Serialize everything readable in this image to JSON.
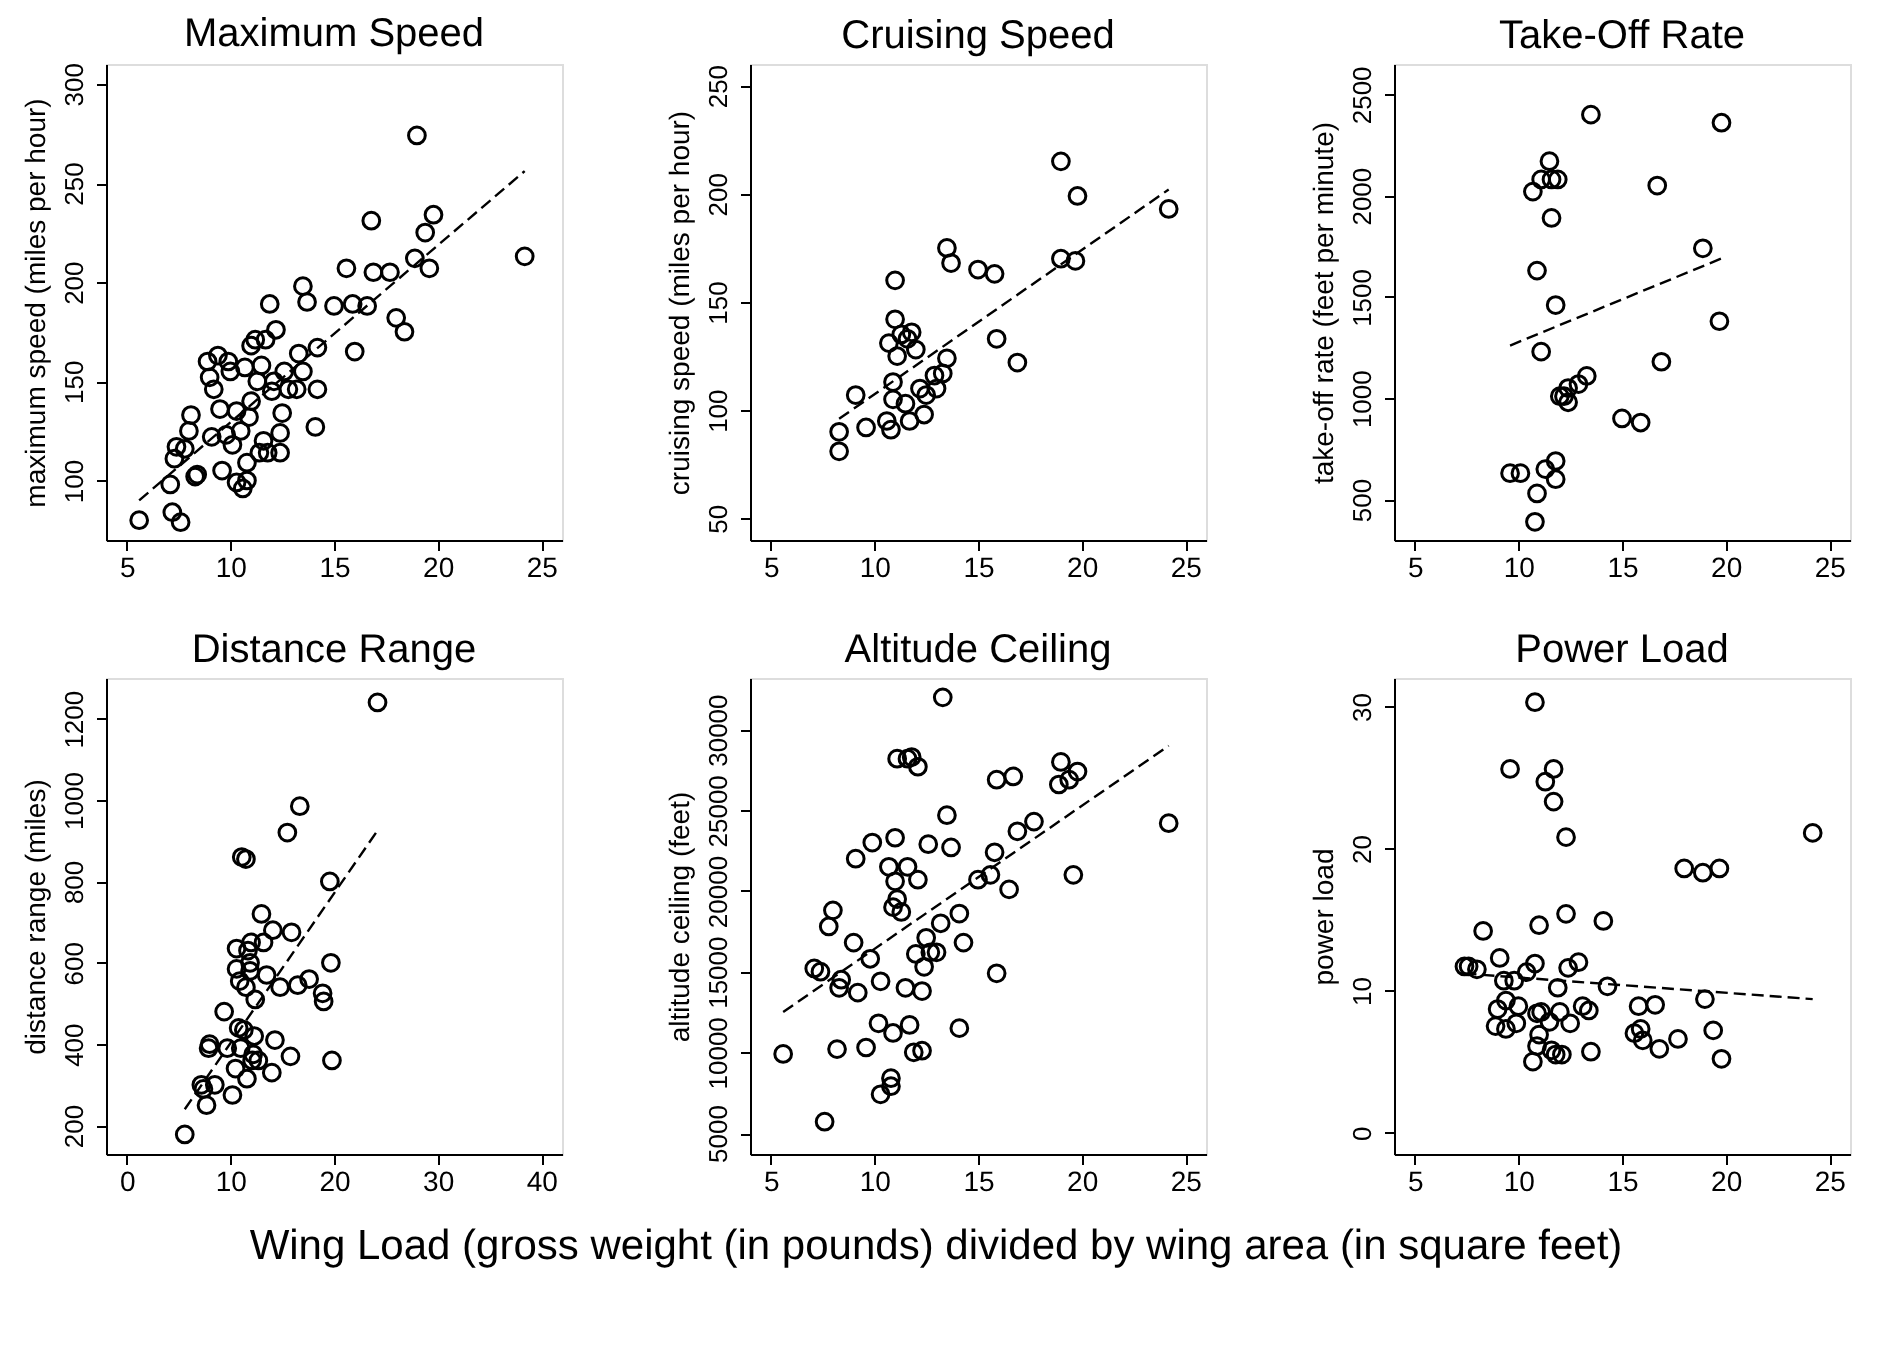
{
  "chart_data": [
    {
      "type": "scatter",
      "title": "Maximum Speed",
      "ylabel": "maximum speed (miles per hour)",
      "xlim": [
        4,
        26
      ],
      "xticks": [
        5,
        10,
        15,
        20,
        25
      ],
      "ylim": [
        70,
        310
      ],
      "yticks": [
        100,
        150,
        200,
        250,
        300
      ],
      "grid": false,
      "series": [
        {
          "marker": "circle",
          "color": "#000000",
          "x": [
            5.6,
            7.1,
            7.2,
            7.4,
            7.3,
            7.6,
            7.8,
            8.0,
            8.1,
            8.3,
            8.4,
            8.9,
            9.0,
            9.1,
            9.2,
            9.4,
            9.5,
            9.6,
            9.8,
            10.0,
            9.9,
            10.1,
            10.3,
            10.3,
            10.5,
            10.6,
            10.7,
            10.8,
            10.8,
            10.9,
            11.0,
            11.0,
            11.2,
            11.3,
            11.4,
            11.5,
            11.6,
            11.7,
            11.8,
            11.9,
            12.0,
            12.1,
            12.2,
            12.4,
            12.4,
            12.5,
            12.6,
            12.8,
            13.2,
            13.3,
            13.5,
            13.5,
            13.7,
            14.1,
            14.2,
            14.2,
            15.0,
            15.6,
            15.9,
            16.0,
            16.6,
            16.8,
            16.9,
            17.7,
            18.0,
            18.4,
            18.9,
            19.0,
            19.4,
            19.6,
            19.8,
            24.2
          ],
          "values": [
            80,
            98,
            84,
            117,
            111,
            79,
            116,
            125,
            133,
            102,
            103,
            160,
            152,
            122,
            146,
            163,
            136,
            105,
            123,
            155,
            160,
            118,
            99,
            135,
            125,
            96,
            157,
            109,
            100,
            132,
            140,
            168,
            171,
            150,
            114,
            158,
            120,
            171,
            114,
            189,
            145,
            150,
            176,
            114,
            124,
            134,
            155,
            146,
            146,
            164,
            198,
            155,
            190,
            127,
            146,
            167,
            188,
            207,
            189,
            165,
            188,
            231,
            205,
            205,
            182,
            175,
            212,
            274,
            225,
            207,
            234,
            213
          ]
        },
        {
          "type": "line",
          "color": "#000000",
          "line_style": "dashed",
          "x": [
            5.6,
            24.2
          ],
          "values": [
            90,
            256
          ]
        }
      ]
    },
    {
      "type": "scatter",
      "title": "Cruising Speed",
      "ylabel": "cruising speed (miles per hour)",
      "xlim": [
        4,
        26
      ],
      "xticks": [
        5,
        10,
        15,
        20,
        25
      ],
      "ylim": [
        40,
        260
      ],
      "yticks": [
        50,
        100,
        150,
        200,
        250
      ],
      "grid": false,
      "series": [
        {
          "marker": "circle",
          "color": "#000000",
          "x": [
            8.3,
            8.3,
            9.1,
            9.6,
            10.6,
            10.7,
            10.8,
            10.9,
            10.9,
            11.0,
            11.0,
            11.1,
            11.3,
            11.5,
            11.6,
            11.7,
            11.8,
            12.0,
            12.2,
            12.4,
            12.5,
            12.9,
            13.0,
            13.3,
            13.5,
            13.5,
            13.7,
            15.0,
            15.8,
            15.9,
            16.9,
            19.0,
            19.0,
            19.7,
            19.8,
            24.2
          ],
          "values": [
            90,
            81,
            107,
            92,
            95,
            131,
            91,
            113,
            105,
            142,
            160,
            125,
            135,
            103,
            133,
            95,
            136,
            128,
            110,
            98,
            107,
            116,
            110,
            117,
            124,
            175,
            168,
            165,
            163,
            133,
            122,
            170,
            215,
            169,
            199,
            193
          ]
        },
        {
          "type": "line",
          "color": "#000000",
          "line_style": "dashed",
          "x": [
            8.3,
            24.2
          ],
          "values": [
            96,
            202
          ]
        }
      ]
    },
    {
      "type": "scatter",
      "title": "Take-Off Rate",
      "ylabel": "take-off rate (feet per minute)",
      "xlim": [
        4,
        26
      ],
      "xticks": [
        5,
        10,
        15,
        20,
        25
      ],
      "ylim": [
        300,
        2650
      ],
      "yticks": [
        500,
        1000,
        1500,
        2000,
        2500
      ],
      "grid": false,
      "series": [
        {
          "marker": "circle",
          "color": "#000000",
          "x": [
            9.6,
            10.1,
            10.7,
            10.8,
            10.9,
            10.9,
            11.1,
            11.1,
            11.3,
            11.5,
            11.6,
            11.6,
            11.8,
            11.8,
            11.8,
            11.9,
            12.0,
            12.2,
            12.4,
            12.4,
            12.9,
            13.3,
            13.5,
            15.0,
            15.9,
            16.7,
            16.9,
            18.9,
            19.7,
            19.8
          ],
          "values": [
            630,
            630,
            2020,
            390,
            530,
            1630,
            1230,
            2080,
            650,
            2170,
            1890,
            2080,
            690,
            600,
            1460,
            2080,
            1010,
            1010,
            980,
            1050,
            1070,
            1110,
            2400,
            900,
            880,
            2050,
            1180,
            1740,
            1380,
            2360
          ]
        },
        {
          "type": "line",
          "color": "#000000",
          "line_style": "dashed",
          "x": [
            9.6,
            19.8
          ],
          "values": [
            1260,
            1690
          ]
        }
      ]
    },
    {
      "type": "scatter",
      "title": "Distance Range",
      "ylabel": "distance range (miles)",
      "xlim": [
        -2,
        42
      ],
      "xticks": [
        0,
        10,
        20,
        30,
        40
      ],
      "ylim": [
        130,
        1300
      ],
      "yticks": [
        200,
        400,
        600,
        800,
        1000,
        1200
      ],
      "grid": false,
      "series": [
        {
          "marker": "circle",
          "color": "#000000",
          "x": [
            5.6,
            7.2,
            7.4,
            7.7,
            7.9,
            8.0,
            8.5,
            9.4,
            9.7,
            10.2,
            10.5,
            10.6,
            10.6,
            10.8,
            10.9,
            11.0,
            11.1,
            11.3,
            11.5,
            11.5,
            11.6,
            11.7,
            11.9,
            11.9,
            12.0,
            12.1,
            12.2,
            12.3,
            12.4,
            12.7,
            13.0,
            13.2,
            13.5,
            14.0,
            14.1,
            14.3,
            14.8,
            15.5,
            15.8,
            15.9,
            16.5,
            16.7,
            17.6,
            18.9,
            19.0,
            19.6,
            19.7,
            19.8,
            24.2
          ],
          "values": [
            178,
            300,
            290,
            250,
            390,
            400,
            300,
            480,
            390,
            275,
            340,
            585,
            635,
            440,
            555,
            390,
            860,
            435,
            855,
            540,
            315,
            630,
            600,
            580,
            650,
            360,
            375,
            420,
            510,
            360,
            720,
            650,
            570,
            330,
            680,
            410,
            540,
            920,
            370,
            675,
            545,
            985,
            560,
            525,
            505,
            800,
            600,
            360,
            1240
          ]
        },
        {
          "type": "line",
          "color": "#000000",
          "line_style": "dashed",
          "x": [
            5.6,
            24.2
          ],
          "values": [
            240,
            925
          ]
        }
      ]
    },
    {
      "type": "scatter",
      "title": "Altitude Ceiling",
      "ylabel": "altitude ceiling (feet)",
      "xlim": [
        4,
        26
      ],
      "xticks": [
        5,
        10,
        15,
        20,
        25
      ],
      "ylim": [
        3700,
        33200
      ],
      "yticks": [
        5000,
        10000,
        15000,
        20000,
        25000,
        30000
      ],
      "grid": false,
      "annotations": [
        "Wing Load (gross weight (in pounds) divided by wing area (in square feet)"
      ],
      "series": [
        {
          "marker": "circle",
          "color": "#000000",
          "x": [
            5.6,
            7.1,
            7.4,
            7.6,
            7.8,
            8.0,
            8.2,
            8.4,
            8.3,
            9.0,
            9.1,
            9.2,
            9.6,
            9.8,
            9.9,
            10.2,
            10.3,
            10.3,
            10.7,
            10.8,
            10.8,
            10.9,
            10.9,
            11.0,
            11.0,
            11.1,
            11.1,
            11.3,
            11.5,
            11.6,
            11.6,
            11.7,
            11.8,
            11.9,
            12.0,
            12.1,
            12.1,
            12.3,
            12.3,
            12.4,
            12.5,
            12.6,
            12.7,
            13.0,
            13.2,
            13.3,
            13.5,
            13.7,
            14.1,
            14.1,
            14.3,
            15.0,
            15.6,
            15.8,
            15.9,
            15.9,
            16.5,
            16.7,
            16.9,
            17.7,
            18.9,
            19.0,
            19.4,
            19.6,
            19.8,
            24.2
          ],
          "values": [
            9900,
            15200,
            15000,
            5700,
            17800,
            18800,
            10200,
            14500,
            14000,
            16800,
            22000,
            13700,
            10300,
            15800,
            23000,
            11800,
            14400,
            7400,
            21500,
            8400,
            7900,
            11200,
            19000,
            20600,
            23300,
            28200,
            19500,
            18700,
            14000,
            28200,
            21500,
            11700,
            28300,
            10000,
            16100,
            20700,
            27700,
            13800,
            10100,
            15300,
            17100,
            22900,
            16200,
            16200,
            18000,
            32000,
            24700,
            22700,
            18600,
            11500,
            16800,
            20700,
            21000,
            22400,
            26900,
            14900,
            20100,
            27100,
            23700,
            24300,
            26600,
            28000,
            26900,
            21000,
            27400,
            24200
          ]
        },
        {
          "type": "line",
          "color": "#000000",
          "line_style": "dashed",
          "x": [
            5.6,
            24.2
          ],
          "values": [
            12500,
            29000
          ]
        }
      ]
    },
    {
      "type": "scatter",
      "title": "Power Load",
      "ylabel": "power load",
      "xlim": [
        4,
        26
      ],
      "xticks": [
        5,
        10,
        15,
        20,
        25
      ],
      "ylim": [
        -1.5,
        32
      ],
      "yticks": [
        0,
        10,
        20,
        30
      ],
      "grid": false,
      "series": [
        {
          "marker": "circle",
          "color": "#000000",
          "x": [
            7.4,
            7.6,
            8.0,
            8.3,
            8.9,
            9.0,
            9.1,
            9.3,
            9.4,
            9.4,
            9.6,
            9.8,
            9.9,
            10.0,
            10.4,
            10.7,
            10.8,
            10.8,
            10.9,
            10.9,
            11.0,
            11.0,
            11.1,
            11.3,
            11.5,
            11.6,
            11.7,
            11.7,
            11.8,
            11.9,
            12.0,
            12.1,
            12.3,
            12.3,
            12.4,
            12.5,
            12.9,
            13.1,
            13.4,
            13.5,
            14.1,
            14.3,
            15.6,
            15.8,
            15.9,
            16.0,
            16.6,
            16.8,
            17.7,
            18.0,
            18.9,
            19.0,
            19.4,
            19.7,
            19.8,
            24.2
          ],
          "values": [
            11.7,
            11.7,
            11.5,
            14.2,
            7.5,
            8.7,
            12.3,
            10.7,
            9.3,
            7.3,
            25.6,
            10.7,
            7.7,
            8.9,
            11.3,
            5.0,
            30.3,
            11.9,
            6.1,
            8.4,
            6.9,
            14.6,
            8.5,
            24.7,
            7.8,
            5.8,
            25.6,
            23.3,
            5.5,
            10.2,
            8.5,
            5.5,
            20.8,
            15.4,
            11.6,
            7.7,
            12.0,
            8.9,
            8.6,
            5.7,
            14.9,
            10.3,
            7.0,
            8.9,
            7.3,
            6.5,
            9.0,
            5.9,
            6.6,
            18.6,
            18.3,
            9.4,
            7.2,
            18.6,
            5.2,
            21.1
          ]
        },
        {
          "type": "line",
          "color": "#000000",
          "line_style": "dashed",
          "x": [
            7.4,
            24.2
          ],
          "values": [
            11.2,
            9.4
          ]
        }
      ]
    }
  ]
}
